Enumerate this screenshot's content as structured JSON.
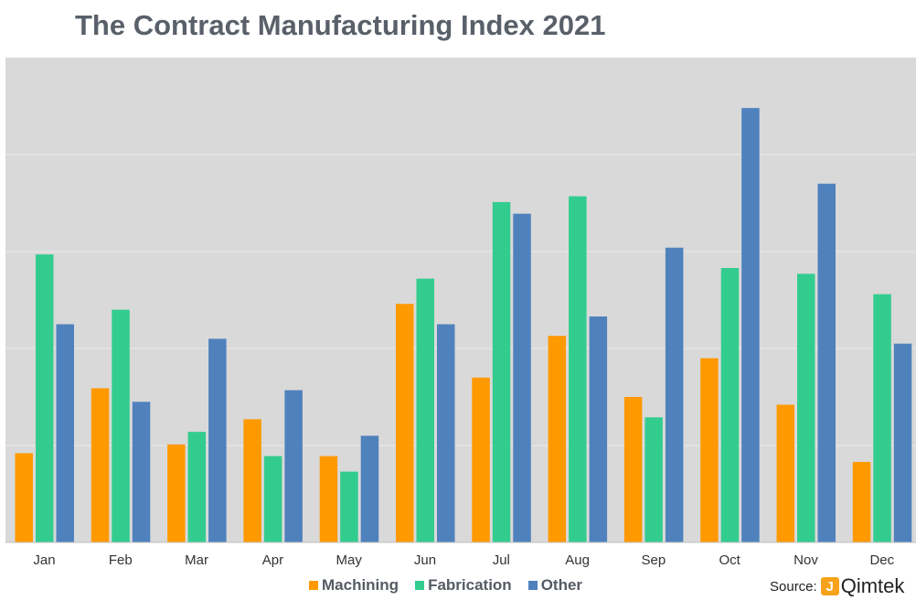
{
  "title": "The Contract Manufacturing Index 2021",
  "source": {
    "label": "Source:",
    "brand": "Qimtek",
    "logo_glyph": "J"
  },
  "colors": {
    "Machining": "#ff9900",
    "Fabrication": "#33cc8f",
    "Other": "#4f81bd",
    "plot_bg": "#d9d9d9",
    "grid": "#ececec"
  },
  "chart_data": {
    "type": "bar",
    "title": "The Contract Manufacturing Index 2021",
    "xlabel": "",
    "ylabel": "",
    "categories": [
      "Jan",
      "Feb",
      "Mar",
      "Apr",
      "May",
      "Jun",
      "Jul",
      "Aug",
      "Sep",
      "Oct",
      "Nov",
      "Dec"
    ],
    "series": [
      {
        "name": "Machining",
        "values": [
          92,
          159,
          101,
          127,
          89,
          246,
          170,
          213,
          150,
          190,
          142,
          83
        ]
      },
      {
        "name": "Fabrication",
        "values": [
          297,
          240,
          114,
          89,
          73,
          272,
          351,
          357,
          129,
          283,
          277,
          256
        ]
      },
      {
        "name": "Other",
        "values": [
          225,
          145,
          210,
          157,
          110,
          225,
          339,
          233,
          304,
          448,
          370,
          205
        ]
      }
    ],
    "ylim": [
      0,
      500
    ],
    "grid": true,
    "y_tick_labels_visible": false,
    "legend_position": "bottom"
  }
}
